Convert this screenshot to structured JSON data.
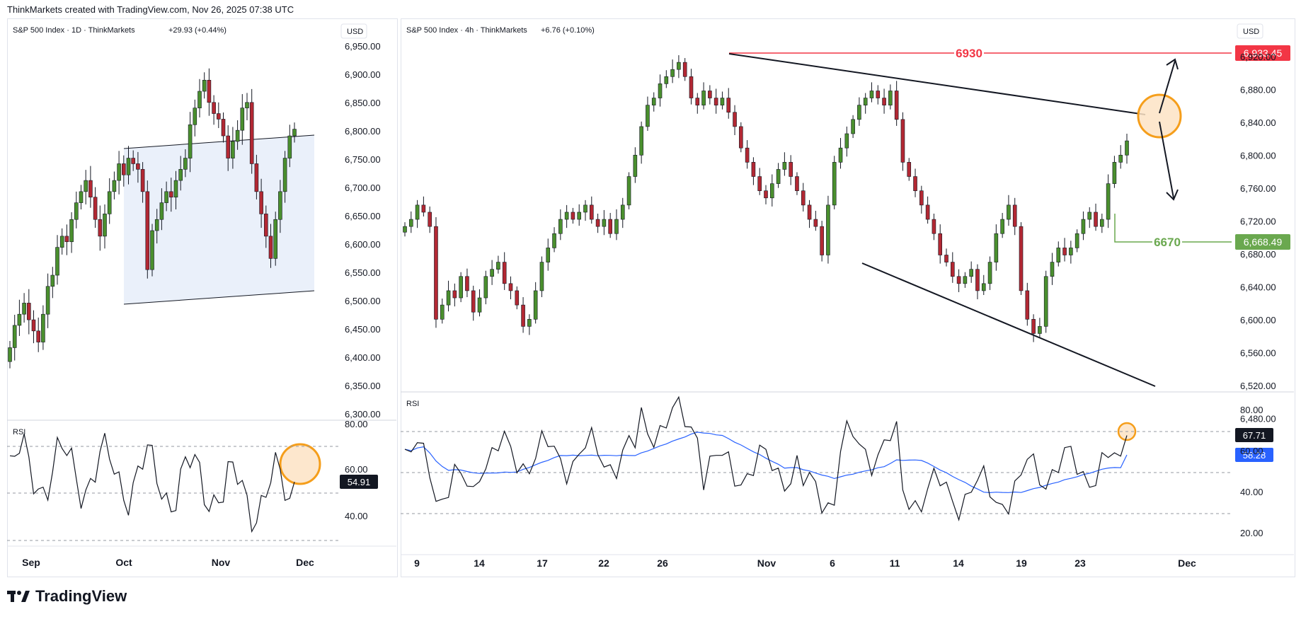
{
  "header": {
    "text": "ThinkMarkets created with TradingView.com, Nov 26, 2025 07:38 UTC"
  },
  "brand": {
    "name": "TradingView"
  },
  "left": {
    "title": "S&P 500 Index · 1D · ThinkMarkets",
    "change": "+29.93 (+0.44%)",
    "currency": "USD",
    "price_ticks": [
      "6,950.00",
      "6,900.00",
      "6,850.00",
      "6,800.00",
      "6,750.00",
      "6,700.00",
      "6,650.00",
      "6,600.00",
      "6,550.00",
      "6,500.00",
      "6,450.00",
      "6,400.00",
      "6,350.00",
      "6,300.00"
    ],
    "time_labels": [
      "Sep",
      "Oct",
      "Nov",
      "Dec"
    ],
    "rsi_label": "RSI",
    "rsi_ticks": [
      "80.00",
      "60.00",
      "40.00"
    ],
    "rsi_value": "54.91"
  },
  "right": {
    "title": "S&P 500 Index · 4h · ThinkMarkets",
    "change": "+6.76 (+0.10%)",
    "currency": "USD",
    "price_ticks": [
      "6,920.00",
      "6,880.00",
      "6,840.00",
      "6,800.00",
      "6,760.00",
      "6,720.00",
      "6,680.00",
      "6,640.00",
      "6,600.00",
      "6,560.00",
      "6,520.00",
      "6,480.00"
    ],
    "time_labels": [
      "9",
      "14",
      "17",
      "22",
      "26",
      "Nov",
      "6",
      "11",
      "14",
      "19",
      "23",
      "Dec"
    ],
    "level_high_label": "6930",
    "level_high_price": "6,933.45",
    "level_low_label": "6670",
    "level_low_price": "6,668.49",
    "rsi_label": "RSI",
    "rsi_ticks": [
      "80.00",
      "60.00",
      "40.00",
      "20.00"
    ],
    "rsi_value": "67.71",
    "rsi_ma_value": "58.28"
  },
  "colors": {
    "up": "#4a8f2e",
    "down": "#b22833",
    "resistance": "#f23645",
    "support": "#6aa84f",
    "circle": "#f59e1b",
    "rsi_ma": "#2962ff",
    "channel_fill": "#dce6f7"
  },
  "chart_data": [
    {
      "type": "candlestick",
      "title": "S&P 500 Index · 1D · ThinkMarkets",
      "ylim": [
        6300,
        6960
      ],
      "x_labels": [
        "Sep",
        "Oct",
        "Nov",
        "Dec"
      ],
      "closes": [
        6420,
        6460,
        6480,
        6500,
        6470,
        6450,
        6430,
        6480,
        6530,
        6550,
        6600,
        6620,
        6610,
        6650,
        6680,
        6700,
        6720,
        6690,
        6650,
        6620,
        6660,
        6700,
        6720,
        6750,
        6730,
        6760,
        6750,
        6740,
        6700,
        6560,
        6630,
        6650,
        6680,
        6700,
        6690,
        6720,
        6740,
        6760,
        6820,
        6850,
        6880,
        6900,
        6860,
        6840,
        6830,
        6800,
        6760,
        6790,
        6810,
        6850,
        6860,
        6750,
        6700,
        6660,
        6620,
        6580,
        6650,
        6700,
        6760,
        6800,
        6812
      ]
    },
    {
      "type": "candlestick",
      "title": "S&P 500 Index · 4h · ThinkMarkets",
      "ylim": [
        6460,
        6950
      ],
      "x_labels": [
        "9",
        "14",
        "17",
        "22",
        "26",
        "Nov",
        "6",
        "11",
        "14",
        "19",
        "23",
        "Dec"
      ],
      "levels": [
        6930,
        6670
      ],
      "price_tags": [
        6933.45,
        6668.49
      ],
      "closes": [
        6690,
        6700,
        6720,
        6710,
        6690,
        6560,
        6580,
        6600,
        6590,
        6620,
        6600,
        6570,
        6590,
        6620,
        6630,
        6640,
        6610,
        6600,
        6580,
        6550,
        6560,
        6600,
        6640,
        6660,
        6680,
        6700,
        6710,
        6700,
        6710,
        6720,
        6700,
        6690,
        6700,
        6680,
        6700,
        6720,
        6760,
        6790,
        6830,
        6860,
        6870,
        6890,
        6900,
        6910,
        6920,
        6900,
        6870,
        6860,
        6880,
        6870,
        6860,
        6870,
        6850,
        6830,
        6800,
        6780,
        6760,
        6740,
        6730,
        6750,
        6770,
        6780,
        6760,
        6740,
        6720,
        6700,
        6690,
        6650,
        6720,
        6780,
        6800,
        6820,
        6840,
        6860,
        6870,
        6880,
        6870,
        6860,
        6880,
        6840,
        6780,
        6760,
        6740,
        6720,
        6700,
        6680,
        6650,
        6640,
        6620,
        6610,
        6620,
        6630,
        6600,
        6610,
        6640,
        6680,
        6700,
        6720,
        6690,
        6600,
        6560,
        6540,
        6550,
        6620,
        6640,
        6660,
        6650,
        6660,
        6680,
        6700,
        6710,
        6690,
        6700,
        6750,
        6780,
        6790,
        6810
      ]
    }
  ]
}
